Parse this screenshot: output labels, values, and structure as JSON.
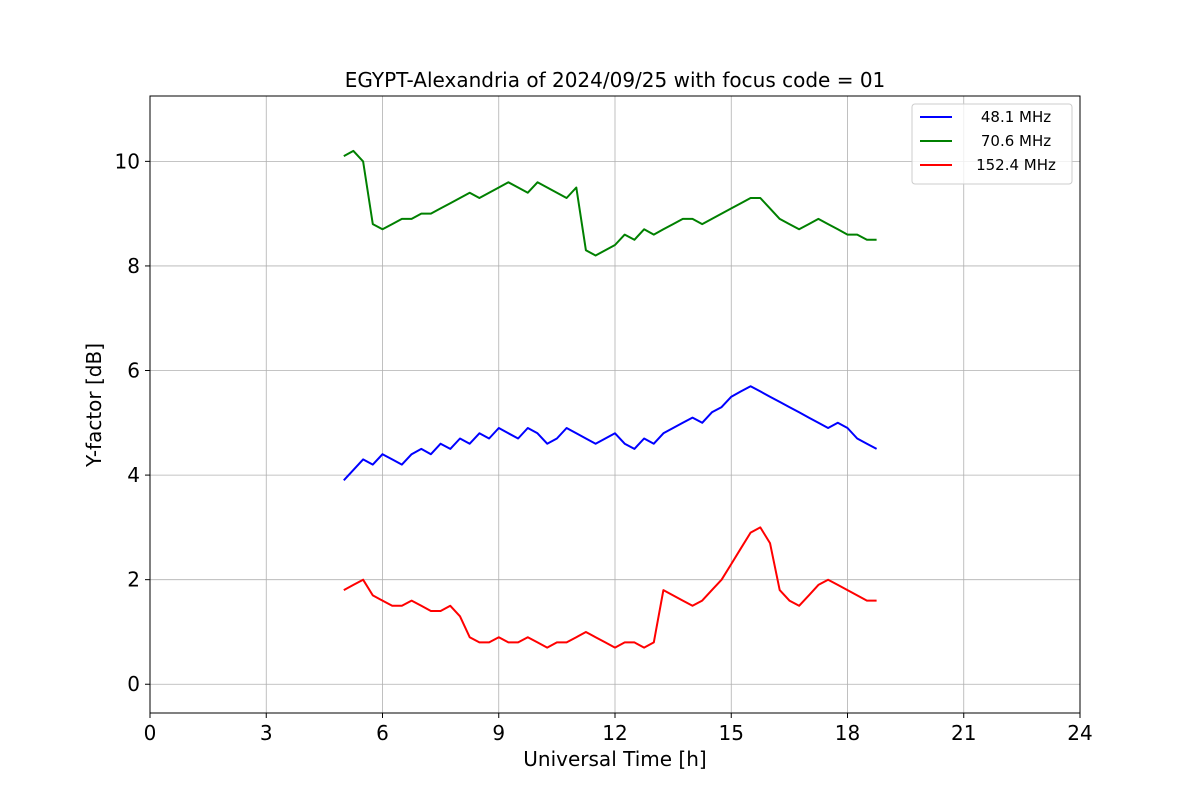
{
  "chart_data": {
    "type": "line",
    "title": "EGYPT-Alexandria of 2024/09/25 with focus code = 01",
    "xlabel": "Universal Time [h]",
    "ylabel": "Y-factor [dB]",
    "xlim": [
      0,
      24
    ],
    "ylim": [
      -0.55,
      11.25
    ],
    "xticks": [
      0,
      3,
      6,
      9,
      12,
      15,
      18,
      21,
      24
    ],
    "yticks": [
      0,
      2,
      4,
      6,
      8,
      10
    ],
    "grid": true,
    "legend_position": "top-right",
    "series": [
      {
        "name": "48.1 MHz",
        "color": "#0000ff",
        "x": [
          5.0,
          5.25,
          5.5,
          5.75,
          6.0,
          6.25,
          6.5,
          6.75,
          7.0,
          7.25,
          7.5,
          7.75,
          8.0,
          8.25,
          8.5,
          8.75,
          9.0,
          9.25,
          9.5,
          9.75,
          10.0,
          10.25,
          10.5,
          10.75,
          11.0,
          11.25,
          11.5,
          11.75,
          12.0,
          12.25,
          12.5,
          12.75,
          13.0,
          13.25,
          13.5,
          13.75,
          14.0,
          14.25,
          14.5,
          14.75,
          15.0,
          15.25,
          15.5,
          15.75,
          16.0,
          16.25,
          16.5,
          16.75,
          17.0,
          17.25,
          17.5,
          17.75,
          18.0,
          18.25,
          18.5,
          18.75
        ],
        "y": [
          3.9,
          4.1,
          4.3,
          4.2,
          4.4,
          4.3,
          4.2,
          4.4,
          4.5,
          4.4,
          4.6,
          4.5,
          4.7,
          4.6,
          4.8,
          4.7,
          4.9,
          4.8,
          4.7,
          4.9,
          4.8,
          4.6,
          4.7,
          4.9,
          4.8,
          4.7,
          4.6,
          4.7,
          4.8,
          4.6,
          4.5,
          4.7,
          4.6,
          4.8,
          4.9,
          5.0,
          5.1,
          5.0,
          5.2,
          5.3,
          5.5,
          5.6,
          5.7,
          5.6,
          5.5,
          5.4,
          5.3,
          5.2,
          5.1,
          5.0,
          4.9,
          5.0,
          4.9,
          4.7,
          4.6,
          4.5
        ]
      },
      {
        "name": "70.6 MHz",
        "color": "#008000",
        "x": [
          5.0,
          5.25,
          5.5,
          5.75,
          6.0,
          6.25,
          6.5,
          6.75,
          7.0,
          7.25,
          7.5,
          7.75,
          8.0,
          8.25,
          8.5,
          8.75,
          9.0,
          9.25,
          9.5,
          9.75,
          10.0,
          10.25,
          10.5,
          10.75,
          11.0,
          11.25,
          11.5,
          11.75,
          12.0,
          12.25,
          12.5,
          12.75,
          13.0,
          13.25,
          13.5,
          13.75,
          14.0,
          14.25,
          14.5,
          14.75,
          15.0,
          15.25,
          15.5,
          15.75,
          16.0,
          16.25,
          16.5,
          16.75,
          17.0,
          17.25,
          17.5,
          17.75,
          18.0,
          18.25,
          18.5,
          18.75
        ],
        "y": [
          10.1,
          10.2,
          10.0,
          8.8,
          8.7,
          8.8,
          8.9,
          8.9,
          9.0,
          9.0,
          9.1,
          9.2,
          9.3,
          9.4,
          9.3,
          9.4,
          9.5,
          9.6,
          9.5,
          9.4,
          9.6,
          9.5,
          9.4,
          9.3,
          9.5,
          8.3,
          8.2,
          8.3,
          8.4,
          8.6,
          8.5,
          8.7,
          8.6,
          8.7,
          8.8,
          8.9,
          8.9,
          8.8,
          8.9,
          9.0,
          9.1,
          9.2,
          9.3,
          9.3,
          9.1,
          8.9,
          8.8,
          8.7,
          8.8,
          8.9,
          8.8,
          8.7,
          8.6,
          8.6,
          8.5,
          8.5
        ]
      },
      {
        "name": "152.4 MHz",
        "color": "#ff0000",
        "x": [
          5.0,
          5.25,
          5.5,
          5.75,
          6.0,
          6.25,
          6.5,
          6.75,
          7.0,
          7.25,
          7.5,
          7.75,
          8.0,
          8.25,
          8.5,
          8.75,
          9.0,
          9.25,
          9.5,
          9.75,
          10.0,
          10.25,
          10.5,
          10.75,
          11.0,
          11.25,
          11.5,
          11.75,
          12.0,
          12.25,
          12.5,
          12.75,
          13.0,
          13.25,
          13.5,
          13.75,
          14.0,
          14.25,
          14.5,
          14.75,
          15.0,
          15.25,
          15.5,
          15.75,
          16.0,
          16.25,
          16.5,
          16.75,
          17.0,
          17.25,
          17.5,
          17.75,
          18.0,
          18.25,
          18.5,
          18.75
        ],
        "y": [
          1.8,
          1.9,
          2.0,
          1.7,
          1.6,
          1.5,
          1.5,
          1.6,
          1.5,
          1.4,
          1.4,
          1.5,
          1.3,
          0.9,
          0.8,
          0.8,
          0.9,
          0.8,
          0.8,
          0.9,
          0.8,
          0.7,
          0.8,
          0.8,
          0.9,
          1.0,
          0.9,
          0.8,
          0.7,
          0.8,
          0.8,
          0.7,
          0.8,
          1.8,
          1.7,
          1.6,
          1.5,
          1.6,
          1.8,
          2.0,
          2.3,
          2.6,
          2.9,
          3.0,
          2.7,
          1.8,
          1.6,
          1.5,
          1.7,
          1.9,
          2.0,
          1.9,
          1.8,
          1.7,
          1.6,
          1.6
        ]
      }
    ]
  }
}
